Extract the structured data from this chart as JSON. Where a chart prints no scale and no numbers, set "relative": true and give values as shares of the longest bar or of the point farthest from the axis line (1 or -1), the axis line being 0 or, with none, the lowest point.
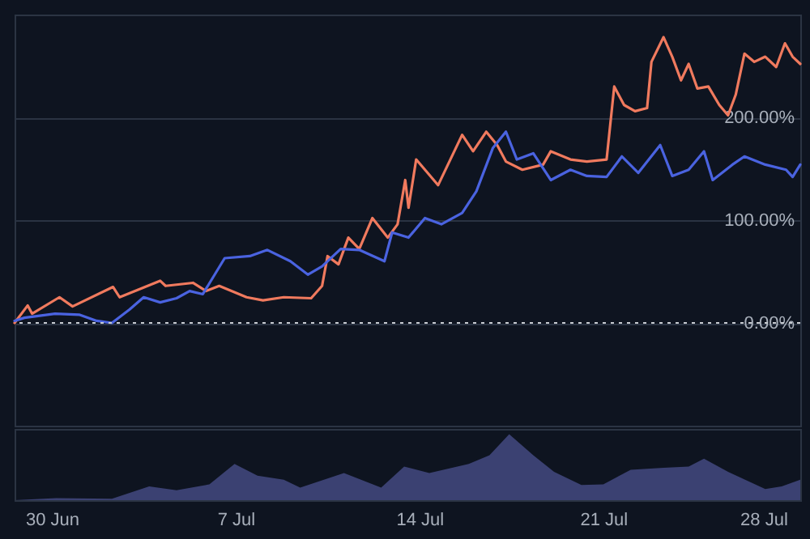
{
  "chart_data": [
    {
      "type": "line",
      "xlim": [
        "--06-28T14:00",
        "--07-28T12:00"
      ],
      "ylim": [
        -100,
        300
      ],
      "yticks": [
        {
          "value": 0,
          "label": "0.00%"
        },
        {
          "value": 100,
          "label": "100.00%"
        },
        {
          "value": 200,
          "label": "200.00%"
        }
      ],
      "grid": "y",
      "tick_labels": "y",
      "ref_lines": [
        {
          "axis": "y",
          "value": 0,
          "color": "#c8ccd2",
          "line_style": "dotted"
        }
      ],
      "series": [
        {
          "color": "#f07a5e",
          "x": [
            "--06-28T14:00",
            "--06-29T02:00",
            "--06-29T06:00",
            "--06-30T07:00",
            "--06-30T19:00",
            "--07-02T08:00",
            "--07-02T14:00",
            "--07-04T03:00",
            "--07-04T08:00",
            "--07-05T09:00",
            "--07-05T21:00",
            "--07-06T09:00",
            "--07-07T10:00",
            "--07-08T01:00",
            "--07-08T20:00",
            "--07-09T21:00",
            "--07-10T07:00",
            "--07-10T12:00",
            "--07-10T22:00",
            "--07-11T07:00",
            "--07-11T17:00",
            "--07-12T05:00",
            "--07-12T19:00",
            "--07-13T04:00",
            "--07-13T11:00",
            "--07-13T14:00",
            "--07-13T21:00",
            "--07-14T17:00",
            "--07-15T15:00",
            "--07-16T01:00",
            "--07-16T13:00",
            "--07-16T23:00",
            "--07-17T07:00",
            "--07-17T22:00",
            "--07-18T17:00",
            "--07-19T00:00",
            "--07-19T18:00",
            "--07-20T09:00",
            "--07-21T03:00",
            "--07-21T10:00",
            "--07-21T19:00",
            "--07-22T05:00",
            "--07-22T16:00",
            "--07-22T20:00",
            "--07-23T07:00",
            "--07-23T15:00",
            "--07-23T23:00",
            "--07-24T06:00",
            "--07-24T14:00",
            "--07-25T00:00",
            "--07-25T10:00",
            "--07-25T18:00",
            "--07-26T01:00",
            "--07-26T09:00",
            "--07-26T18:00",
            "--07-27T04:00",
            "--07-27T14:00",
            "--07-27T22:00",
            "--07-28T05:00",
            "--07-28T12:00"
          ],
          "values": [
            0,
            17,
            9,
            25,
            16,
            35,
            25,
            41,
            36,
            39,
            31,
            36,
            25,
            22,
            25,
            24,
            36,
            65,
            57,
            83,
            72,
            102,
            83,
            96,
            139,
            112,
            159,
            134,
            183,
            167,
            186,
            173,
            157,
            149,
            154,
            167,
            159,
            157,
            159,
            230,
            212,
            206,
            209,
            254,
            278,
            259,
            236,
            252,
            228,
            230,
            212,
            202,
            222,
            262,
            254,
            259,
            249,
            272,
            259,
            252
          ]
        },
        {
          "color": "#4a63e0",
          "x": [
            "--06-28T14:00",
            "--06-28T23:00",
            "--06-30T03:00",
            "--07-01T01:00",
            "--07-01T17:00",
            "--07-02T07:00",
            "--07-02T23:00",
            "--07-03T12:00",
            "--07-04T03:00",
            "--07-04T18:00",
            "--07-05T06:00",
            "--07-05T18:00",
            "--07-06T14:00",
            "--07-07T13:00",
            "--07-08T05:00",
            "--07-09T02:00",
            "--07-09T18:00",
            "--07-10T07:00",
            "--07-11T00:00",
            "--07-11T17:00",
            "--07-12T16:00",
            "--07-12T23:00",
            "--07-13T14:00",
            "--07-14T05:00",
            "--07-14T20:00",
            "--07-15T15:00",
            "--07-16T04:00",
            "--07-16T19:00",
            "--07-17T07:00",
            "--07-17T17:00",
            "--07-18T08:00",
            "--07-19T00:00",
            "--07-19T18:00",
            "--07-20T09:00",
            "--07-21T03:00",
            "--07-21T17:00",
            "--07-22T08:00",
            "--07-23T04:00",
            "--07-23T15:00",
            "--07-24T06:00",
            "--07-24T20:00",
            "--07-25T04:00",
            "--07-25T22:00",
            "--07-26T09:00",
            "--07-27T04:00",
            "--07-27T23:00",
            "--07-28T05:00",
            "--07-28T12:00"
          ],
          "values": [
            2,
            5,
            9,
            8,
            2,
            0,
            13,
            25,
            20,
            24,
            31,
            28,
            63,
            65,
            71,
            60,
            47,
            55,
            72,
            71,
            60,
            88,
            83,
            102,
            96,
            107,
            128,
            170,
            186,
            159,
            165,
            139,
            149,
            143,
            142,
            162,
            146,
            173,
            143,
            149,
            167,
            139,
            154,
            162,
            154,
            149,
            142,
            154
          ]
        }
      ]
    },
    {
      "type": "area",
      "relative": true,
      "xlim": [
        "--06-28T14:00",
        "--07-28T12:00"
      ],
      "xticks": [
        {
          "value": "--06-30",
          "label": "30 Jun"
        },
        {
          "value": "--07-07",
          "label": "7 Jul"
        },
        {
          "value": "--07-14",
          "label": "14 Jul"
        },
        {
          "value": "--07-21",
          "label": "21 Jul"
        },
        {
          "value": "--07-28",
          "label": "28 Jul"
        }
      ],
      "tick_labels": "x",
      "series": [
        {
          "color": "#3b4172",
          "x": [
            "--06-28T14:00",
            "--06-30T04:00",
            "--07-02T07:00",
            "--07-03T17:00",
            "--07-04T18:00",
            "--07-06T00:00",
            "--07-06T23:00",
            "--07-07T20:00",
            "--07-08T20:00",
            "--07-09T11:00",
            "--07-11T03:00",
            "--07-12T13:00",
            "--07-13T10:00",
            "--07-14T09:00",
            "--07-15T21:00",
            "--07-16T16:00",
            "--07-17T10:00",
            "--07-18T08:00",
            "--07-19T03:00",
            "--07-20T04:00",
            "--07-21T00:00",
            "--07-22T01:00",
            "--07-23T07:00",
            "--07-24T06:00",
            "--07-24T20:00",
            "--07-25T18:00",
            "--07-27T04:00",
            "--07-27T19:00",
            "--07-28T12:00"
          ],
          "values": [
            0,
            0.03,
            0.02,
            0.21,
            0.15,
            0.24,
            0.55,
            0.37,
            0.31,
            0.19,
            0.41,
            0.19,
            0.51,
            0.41,
            0.55,
            0.68,
            1,
            0.68,
            0.43,
            0.23,
            0.24,
            0.46,
            0.49,
            0.51,
            0.63,
            0.43,
            0.17,
            0.21,
            0.31
          ]
        }
      ]
    }
  ]
}
